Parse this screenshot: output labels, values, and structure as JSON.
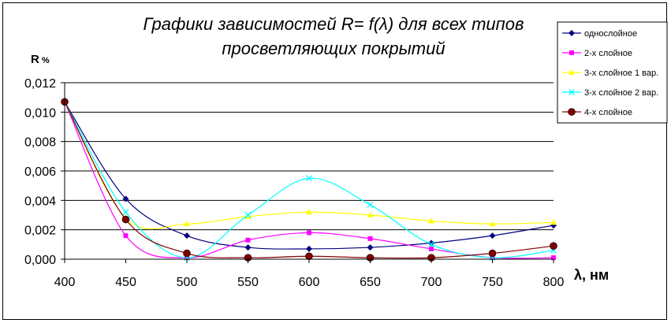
{
  "chart_data": {
    "type": "line",
    "title_lines": [
      "Графики зависимостей R= f(λ) для всех типов",
      "просветляющих покрытий"
    ],
    "ylabel": "R %",
    "xlabel": "λ, нм",
    "x": [
      400,
      450,
      500,
      550,
      600,
      650,
      700,
      750,
      800
    ],
    "xlim": [
      400,
      800
    ],
    "ylim": [
      0,
      0.012
    ],
    "yticks": [
      0,
      0.002,
      0.004,
      0.006,
      0.008,
      0.01,
      0.012
    ],
    "ytick_labels": [
      "0,000",
      "0,002",
      "0,004",
      "0,006",
      "0,008",
      "0,010",
      "0,012"
    ],
    "xtick_labels": [
      "400",
      "450",
      "500",
      "550",
      "600",
      "650",
      "700",
      "750",
      "800"
    ],
    "grid": "horizontal",
    "legend_position": "right",
    "series": [
      {
        "name": "однослойное",
        "color": "#000080",
        "marker": "diamond",
        "values": [
          0.0107,
          0.0041,
          0.0016,
          0.0008,
          0.0007,
          0.0008,
          0.0011,
          0.0016,
          0.0023
        ]
      },
      {
        "name": "2-х  слойное",
        "color": "#ff00ff",
        "marker": "square",
        "values": [
          0.0107,
          0.0016,
          0.0001,
          0.0013,
          0.0018,
          0.0014,
          0.0007,
          0.0001,
          0.0001
        ]
      },
      {
        "name": "3-х  слойное 1 вар.",
        "color": "#ffff00",
        "marker": "triangle",
        "values": [
          0.0107,
          0.0028,
          0.0024,
          0.0029,
          0.0032,
          0.003,
          0.0026,
          0.0024,
          0.0025
        ]
      },
      {
        "name": "3-х  слойное 2 вар.",
        "color": "#00ffff",
        "marker": "cross",
        "values": [
          0.0107,
          0.0032,
          0.0001,
          0.003,
          0.0055,
          0.0037,
          0.001,
          0.0001,
          0.0006
        ]
      },
      {
        "name": "4-х  слойное",
        "color": "#800000",
        "marker": "circle",
        "values": [
          0.0107,
          0.0027,
          0.0004,
          0.0001,
          0.0002,
          0.0001,
          0.0001,
          0.0004,
          0.0009
        ]
      }
    ]
  }
}
